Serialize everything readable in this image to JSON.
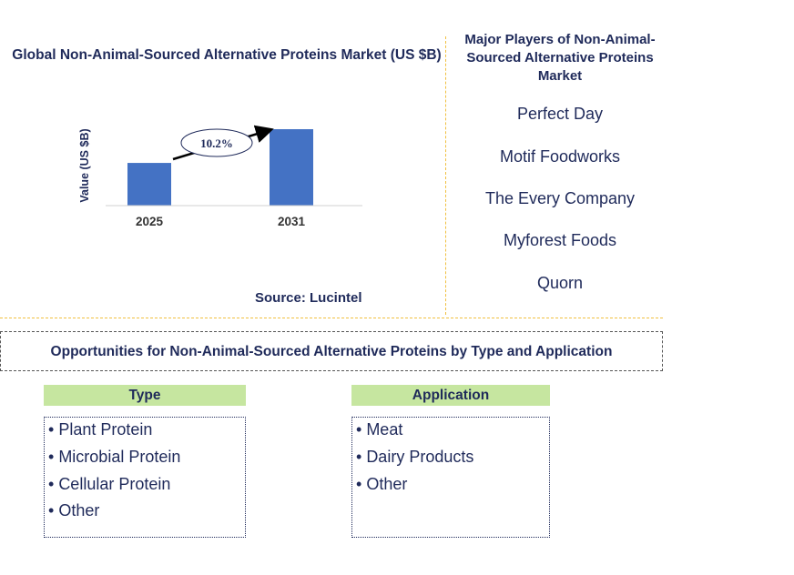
{
  "chart_data": {
    "type": "bar",
    "title": "Global Non-Animal-Sourced Alternative Proteins Market (US $B)",
    "categories": [
      "2025",
      "2031"
    ],
    "values": [
      1.0,
      1.79
    ],
    "ylabel": "Value (US $B)",
    "xlabel": "",
    "ylim": [
      0,
      1.79
    ],
    "bar_color": "#4472c4",
    "annotation": "10.2%"
  },
  "source": "Source: Lucintel",
  "players": {
    "title": "Major Players of Non-Animal-Sourced Alternative Proteins Market",
    "items": [
      "Perfect Day",
      "Motif Foodworks",
      "The Every Company",
      "Myforest Foods",
      "Quorn"
    ]
  },
  "opportunities": {
    "title": "Opportunities for Non-Animal-Sourced Alternative Proteins by Type and Application",
    "type": {
      "heading": "Type",
      "items": [
        "Plant Protein",
        "Microbial Protein",
        "Cellular Protein",
        "Other"
      ]
    },
    "application": {
      "heading": "Application",
      "items": [
        "Meat",
        "Dairy Products",
        "Other"
      ]
    }
  },
  "colors": {
    "text": "#1f2a5a",
    "header_fill": "#c6e6a0",
    "separator": "#f0c040"
  }
}
